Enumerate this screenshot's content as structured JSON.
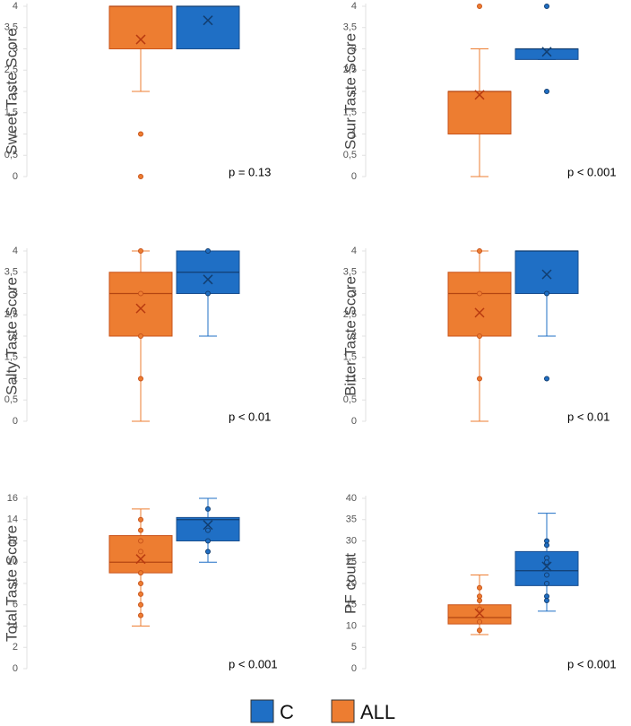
{
  "chart_data": [
    {
      "type": "box",
      "ylabel": "Sweet Taste Score",
      "annotation": "p = 0.13",
      "ylim": [
        0,
        4
      ],
      "yticks": [
        0,
        {
          "value": 0.5,
          "label": "0,5"
        },
        1,
        {
          "value": 1.5,
          "label": "1,5"
        },
        2,
        {
          "value": 2.5,
          "label": "2,5"
        },
        3,
        {
          "value": 3.5,
          "label": "3,5"
        },
        4
      ],
      "series": [
        {
          "name": "ALL",
          "color": "#ed7d31",
          "min": 2,
          "q1": 3,
          "median": 4,
          "q3": 4,
          "max": 4,
          "mean": 3.22,
          "outliers": [
            1,
            0
          ]
        },
        {
          "name": "C",
          "color": "#1f6fc5",
          "min": 3,
          "q1": 3,
          "median": 4,
          "q3": 4,
          "max": 4,
          "mean": 3.67,
          "outliers": []
        }
      ]
    },
    {
      "type": "box",
      "ylabel": "Sour Taste Score",
      "annotation": "p < 0.001",
      "ylim": [
        0,
        4
      ],
      "yticks": [
        0,
        {
          "value": 0.5,
          "label": "0,5"
        },
        1,
        {
          "value": 1.5,
          "label": "1,5"
        },
        2,
        {
          "value": 2.5,
          "label": "2,5"
        },
        3,
        {
          "value": 3.5,
          "label": "3,5"
        },
        4
      ],
      "series": [
        {
          "name": "ALL",
          "color": "#ed7d31",
          "min": 0,
          "q1": 1,
          "median": 2,
          "q3": 2,
          "max": 3,
          "mean": 1.92,
          "outliers": [
            4
          ]
        },
        {
          "name": "C",
          "color": "#1f6fc5",
          "min": 2.75,
          "q1": 2.75,
          "median": 3,
          "q3": 3,
          "max": 3,
          "mean": 2.93,
          "outliers": [
            4,
            2
          ]
        }
      ]
    },
    {
      "type": "box",
      "ylabel": "Salty Taste Score",
      "annotation": "p < 0.01",
      "ylim": [
        0,
        4
      ],
      "yticks": [
        0,
        {
          "value": 0.5,
          "label": "0,5"
        },
        1,
        {
          "value": 1.5,
          "label": "1,5"
        },
        2,
        {
          "value": 2.5,
          "label": "2,5"
        },
        3,
        {
          "value": 3.5,
          "label": "3,5"
        },
        4
      ],
      "series": [
        {
          "name": "ALL",
          "color": "#ed7d31",
          "min": 0,
          "q1": 2,
          "median": 3,
          "q3": 3.5,
          "max": 4,
          "mean": 2.65,
          "outliers": [
            4,
            3,
            2,
            1
          ]
        },
        {
          "name": "C",
          "color": "#1f6fc5",
          "min": 2,
          "q1": 3,
          "median": 3.5,
          "q3": 4,
          "max": 4,
          "mean": 3.33,
          "outliers": [
            4,
            3
          ]
        }
      ]
    },
    {
      "type": "box",
      "ylabel": "Bitter Taste Score",
      "annotation": "p < 0.01",
      "ylim": [
        0,
        4
      ],
      "yticks": [
        0,
        {
          "value": 0.5,
          "label": "0,5"
        },
        1,
        {
          "value": 1.5,
          "label": "1,5"
        },
        2,
        {
          "value": 2.5,
          "label": "2,5"
        },
        3,
        {
          "value": 3.5,
          "label": "3,5"
        },
        4
      ],
      "series": [
        {
          "name": "ALL",
          "color": "#ed7d31",
          "min": 0,
          "q1": 2,
          "median": 3,
          "q3": 3.5,
          "max": 4,
          "mean": 2.55,
          "outliers": [
            4,
            3,
            2,
            1
          ]
        },
        {
          "name": "C",
          "color": "#1f6fc5",
          "min": 2,
          "q1": 3,
          "median": 4,
          "q3": 4,
          "max": 4,
          "mean": 3.45,
          "outliers": [
            3,
            1
          ]
        }
      ]
    },
    {
      "type": "box",
      "ylabel": "Total Taste Score",
      "annotation": "p < 0.001",
      "ylim": [
        0,
        16
      ],
      "yticks": [
        0,
        2,
        4,
        6,
        8,
        10,
        12,
        14,
        16
      ],
      "series": [
        {
          "name": "ALL",
          "color": "#ed7d31",
          "min": 4,
          "q1": 9,
          "median": 10,
          "q3": 12.5,
          "max": 15,
          "mean": 10.3,
          "outliers": [
            14,
            13,
            12,
            11,
            9,
            8,
            7,
            6,
            5
          ]
        },
        {
          "name": "C",
          "color": "#1f6fc5",
          "min": 10,
          "q1": 12,
          "median": 14,
          "q3": 14.2,
          "max": 16,
          "mean": 13.5,
          "outliers": [
            15,
            13,
            12,
            11
          ]
        }
      ]
    },
    {
      "type": "box",
      "ylabel": "PF count",
      "annotation": "p < 0.001",
      "ylim": [
        0,
        40
      ],
      "yticks": [
        0,
        5,
        10,
        15,
        20,
        25,
        30,
        35,
        40
      ],
      "series": [
        {
          "name": "ALL",
          "color": "#ed7d31",
          "min": 8,
          "q1": 10.5,
          "median": 12,
          "q3": 15,
          "max": 22,
          "mean": 13,
          "outliers": [
            19,
            17,
            16,
            14,
            11,
            9
          ]
        },
        {
          "name": "C",
          "color": "#1f6fc5",
          "min": 13.5,
          "q1": 19.5,
          "median": 23,
          "q3": 27.5,
          "max": 36.5,
          "mean": 24,
          "outliers": [
            30,
            29,
            26,
            25,
            22,
            20,
            17,
            16
          ]
        }
      ]
    }
  ]
}
